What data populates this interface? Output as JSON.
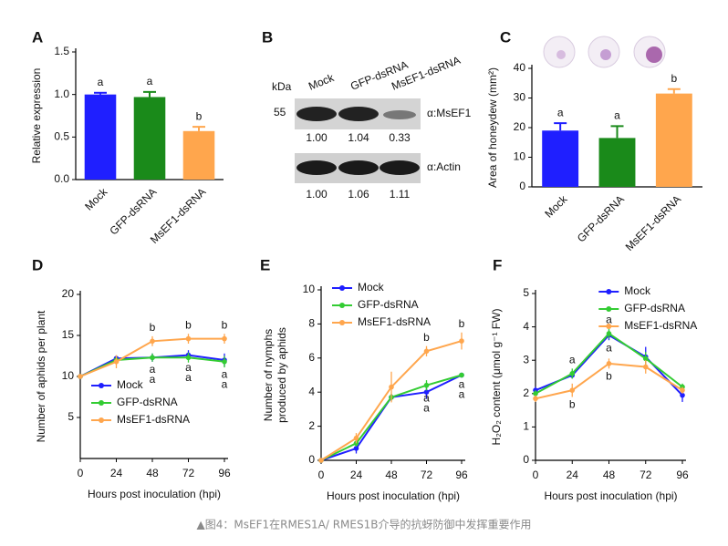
{
  "chart_data": [
    {
      "type": "bar",
      "panel": "A",
      "ylabel": "Relative expression",
      "categories": [
        "Mock",
        "GFP-dsRNA",
        "MsEF1-dsRNA"
      ],
      "values": [
        1.0,
        0.97,
        0.57
      ],
      "errors": [
        0.02,
        0.06,
        0.05
      ],
      "significance": [
        "a",
        "a",
        "b"
      ],
      "colors": [
        "#1f1fff",
        "#1a8a1a",
        "#ffa64d"
      ],
      "ylim": [
        0,
        1.5
      ],
      "yticks": [
        {
          "value": 0,
          "label": "0.0"
        },
        0.5,
        {
          "value": 1,
          "label": "1.0"
        },
        1.5
      ]
    },
    {
      "type": "bar",
      "panel": "C",
      "ylabel": "Area of honeydew (mm²)",
      "categories": [
        "Mock",
        "GFP-dsRNA",
        "MsEF1-dsRNA"
      ],
      "values": [
        19,
        16.5,
        31.5
      ],
      "errors": [
        2.5,
        4,
        1.5
      ],
      "significance": [
        "a",
        "a",
        "b"
      ],
      "colors": [
        "#1f1fff",
        "#1a8a1a",
        "#ffa64d"
      ],
      "ylim": [
        0,
        40
      ],
      "yticks": [
        0,
        10,
        20,
        30,
        40
      ]
    },
    {
      "type": "line",
      "panel": "D",
      "ylabel": [
        "Number of aphids per plant"
      ],
      "xlabel": "Hours post inoculation (hpi)",
      "x": [
        0,
        24,
        48,
        72,
        96
      ],
      "xlim": [
        0,
        96
      ],
      "xticks": [
        0,
        24,
        48,
        72,
        96
      ],
      "ylim": [
        0,
        20
      ],
      "yticks": [
        5,
        10,
        15,
        20
      ],
      "legend": "lower left",
      "series": [
        {
          "name": "Mock",
          "color": "#1f1fff",
          "values": [
            10,
            12.2,
            12.3,
            12.6,
            12
          ],
          "errors": [
            0,
            0.3,
            0.5,
            0.6,
            0.8
          ],
          "significance": [
            null,
            null,
            "a",
            "a",
            "a"
          ]
        },
        {
          "name": "GFP-dsRNA",
          "color": "#33cc33",
          "values": [
            10,
            12.0,
            12.3,
            12.3,
            11.8
          ],
          "errors": [
            0,
            0.4,
            0.5,
            0.6,
            0.7
          ],
          "significance": [
            null,
            null,
            "a",
            "a",
            "a"
          ]
        },
        {
          "name": "MsEF1-dsRNA",
          "color": "#ffa64d",
          "values": [
            10,
            11.8,
            14.3,
            14.6,
            14.6
          ],
          "errors": [
            0,
            0.8,
            0.6,
            0.6,
            0.6
          ],
          "significance": [
            null,
            null,
            "b",
            "b",
            "b"
          ]
        }
      ]
    },
    {
      "type": "line",
      "panel": "E",
      "ylabel": [
        "Number of nymphs",
        "produced by aphids"
      ],
      "xlabel": "Hours post inoculation (hpi)",
      "x": [
        0,
        24,
        48,
        72,
        96
      ],
      "xlim": [
        0,
        96
      ],
      "xticks": [
        0,
        24,
        48,
        72,
        96
      ],
      "ylim": [
        0,
        10
      ],
      "yticks": [
        0,
        2,
        4,
        6,
        8,
        10
      ],
      "legend": "upper left",
      "series": [
        {
          "name": "Mock",
          "color": "#1f1fff",
          "values": [
            0,
            0.7,
            3.7,
            4.0,
            5.0
          ],
          "errors": [
            0,
            0.3,
            0.2,
            0.4,
            0.1
          ],
          "significance": [
            null,
            null,
            null,
            "a",
            "a"
          ]
        },
        {
          "name": "GFP-dsRNA",
          "color": "#33cc33",
          "values": [
            0,
            1.0,
            3.7,
            4.4,
            5.0
          ],
          "errors": [
            0,
            0.2,
            0.2,
            0.3,
            0.1
          ],
          "significance": [
            null,
            null,
            null,
            "a",
            "a"
          ]
        },
        {
          "name": "MsEF1-dsRNA",
          "color": "#ffa64d",
          "values": [
            0,
            1.3,
            4.3,
            6.4,
            7.0
          ],
          "errors": [
            0,
            0.3,
            0.9,
            0.3,
            0.5
          ],
          "significance": [
            null,
            null,
            null,
            "b",
            "b"
          ]
        }
      ]
    },
    {
      "type": "line",
      "panel": "F",
      "ylabel": [
        "H₂O₂ content (μmol g⁻¹ FW)"
      ],
      "xlabel": "Hours post inoculation (hpi)",
      "x": [
        0,
        24,
        48,
        72,
        96
      ],
      "xlim": [
        0,
        96
      ],
      "xticks": [
        0,
        24,
        48,
        72,
        96
      ],
      "ylim": [
        0,
        5
      ],
      "yticks": [
        0,
        1,
        2,
        3,
        4,
        5
      ],
      "legend": "upper right",
      "series": [
        {
          "name": "Mock",
          "color": "#1f1fff",
          "values": [
            2.1,
            2.55,
            3.75,
            3.1,
            1.95
          ],
          "errors": [
            0.1,
            0.1,
            0.15,
            0.3,
            0.2
          ],
          "significance": [
            null,
            null,
            "a",
            null,
            null
          ]
        },
        {
          "name": "GFP-dsRNA",
          "color": "#33cc33",
          "values": [
            2.0,
            2.6,
            3.8,
            3.05,
            2.2
          ],
          "errors": [
            0.1,
            0.15,
            0.15,
            0.2,
            0.1
          ],
          "significance": [
            null,
            "a",
            "a",
            null,
            null
          ]
        },
        {
          "name": "MsEF1-dsRNA",
          "color": "#ffa64d",
          "values": [
            1.85,
            2.1,
            2.9,
            2.8,
            2.1
          ],
          "errors": [
            0.1,
            0.2,
            0.15,
            0.2,
            0.1
          ],
          "significance": [
            null,
            "b",
            "b",
            null,
            null
          ]
        }
      ]
    }
  ],
  "blot": {
    "panel": "B",
    "unit": "kDa",
    "marker": "55",
    "lanes": [
      "Mock",
      "GFP-dsRNA",
      "MsEF1-dsRNA"
    ],
    "rows": [
      {
        "antibody": "α:MsEF1",
        "ratios": [
          "1.00",
          "1.04",
          "0.33"
        ]
      },
      {
        "antibody": "α:Actin",
        "ratios": [
          "1.00",
          "1.06",
          "1.11"
        ]
      }
    ]
  },
  "caption": "▲图4：MsEF1在RMES1A/ RMES1B介导的抗蚜防御中发挥重要作用"
}
